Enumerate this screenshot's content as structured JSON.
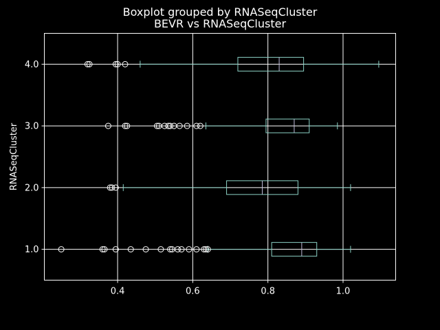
{
  "chart_data": {
    "type": "boxplot",
    "orientation": "horizontal",
    "title": "Boxplot grouped by RNASeqCluster",
    "subtitle": "BEVR vs RNASeqCluster",
    "xlabel": "",
    "ylabel": "RNASeqCluster",
    "xlim": [
      0.205,
      1.14
    ],
    "ylim": [
      0.5,
      4.5
    ],
    "x_ticks": [
      0.4,
      0.6,
      0.8,
      1.0
    ],
    "x_tick_labels": [
      "0.4",
      "0.6",
      "0.8",
      "1.0"
    ],
    "y_tick_labels": [
      "1.0",
      "2.0",
      "3.0",
      "4.0"
    ],
    "grid": true,
    "colors": {
      "background": "#000000",
      "box": "#8dd3c7",
      "median": "#bfbbd9",
      "text": "#ffffff",
      "grid": "#ffffff"
    },
    "categories": [
      "1.0",
      "2.0",
      "3.0",
      "4.0"
    ],
    "boxes": [
      {
        "category": "1.0",
        "whisker_low": 0.64,
        "q1": 0.81,
        "median": 0.89,
        "q3": 0.93,
        "whisker_high": 1.02,
        "outliers": [
          0.25,
          0.36,
          0.365,
          0.395,
          0.435,
          0.475,
          0.515,
          0.54,
          0.545,
          0.56,
          0.57,
          0.59,
          0.61,
          0.63,
          0.635,
          0.64
        ]
      },
      {
        "category": "2.0",
        "whisker_low": 0.415,
        "q1": 0.69,
        "median": 0.785,
        "q3": 0.88,
        "whisker_high": 1.02,
        "outliers": [
          0.38,
          0.385,
          0.395
        ]
      },
      {
        "category": "3.0",
        "whisker_low": 0.635,
        "q1": 0.795,
        "median": 0.87,
        "q3": 0.91,
        "whisker_high": 0.985,
        "outliers": [
          0.375,
          0.42,
          0.425,
          0.505,
          0.51,
          0.525,
          0.535,
          0.54,
          0.55,
          0.565,
          0.585,
          0.61,
          0.62
        ]
      },
      {
        "category": "4.0",
        "whisker_low": 0.46,
        "q1": 0.72,
        "median": 0.83,
        "q3": 0.895,
        "whisker_high": 1.095,
        "outliers": [
          0.32,
          0.325,
          0.395,
          0.4,
          0.42
        ]
      }
    ]
  }
}
